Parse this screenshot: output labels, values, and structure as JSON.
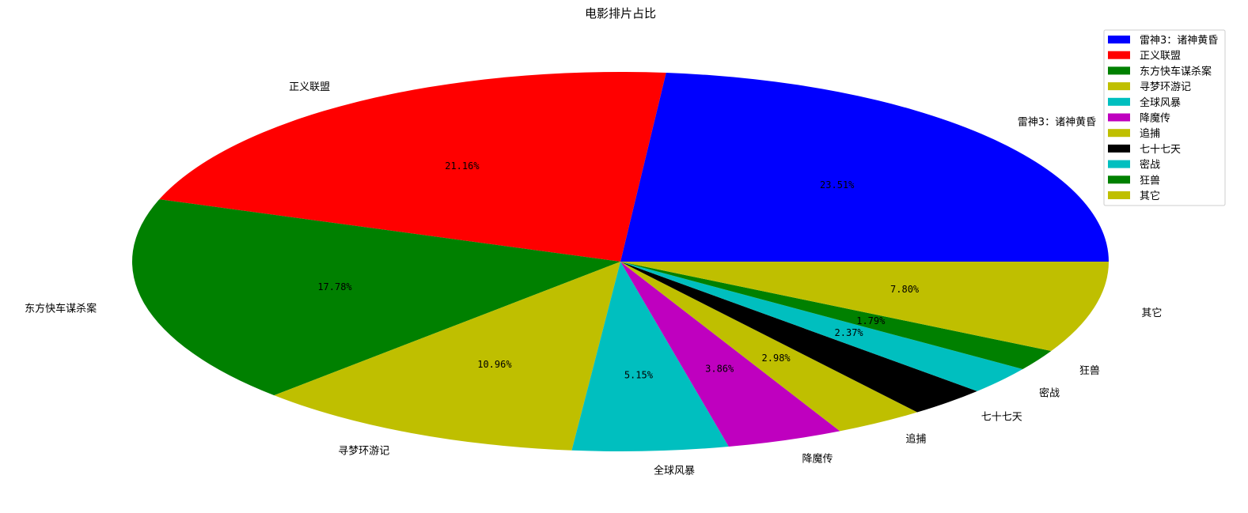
{
  "chart_data": {
    "type": "pie",
    "title": "电影排片占比",
    "legend_position": "top-right",
    "start_angle_deg": 0,
    "direction": "counterclockwise",
    "slices": [
      {
        "label": "雷神3：诸神黄昏",
        "value": 23.51,
        "pct_text": "23.51%",
        "color": "#0000ff"
      },
      {
        "label": "正义联盟",
        "value": 21.16,
        "pct_text": "21.16%",
        "color": "#ff0000"
      },
      {
        "label": "东方快车谋杀案",
        "value": 17.78,
        "pct_text": "17.78%",
        "color": "#008000"
      },
      {
        "label": "寻梦环游记",
        "value": 10.96,
        "pct_text": "10.96%",
        "color": "#bfbf00"
      },
      {
        "label": "全球风暴",
        "value": 5.15,
        "pct_text": "5.15%",
        "color": "#00bfbf"
      },
      {
        "label": "降魔传",
        "value": 3.86,
        "pct_text": "3.86%",
        "color": "#bf00bf"
      },
      {
        "label": "追捕",
        "value": 2.98,
        "pct_text": "2.98%",
        "color": "#bfbf00"
      },
      {
        "label": "七十七天",
        "value": 2.64,
        "pct_text": "",
        "color": "#000000"
      },
      {
        "label": "密战",
        "value": 2.37,
        "pct_text": "2.37%",
        "color": "#00bfbf"
      },
      {
        "label": "狂兽",
        "value": 1.79,
        "pct_text": "1.79%",
        "color": "#008000"
      },
      {
        "label": "其它",
        "value": 7.8,
        "pct_text": "7.80%",
        "color": "#bfbf00"
      }
    ]
  }
}
